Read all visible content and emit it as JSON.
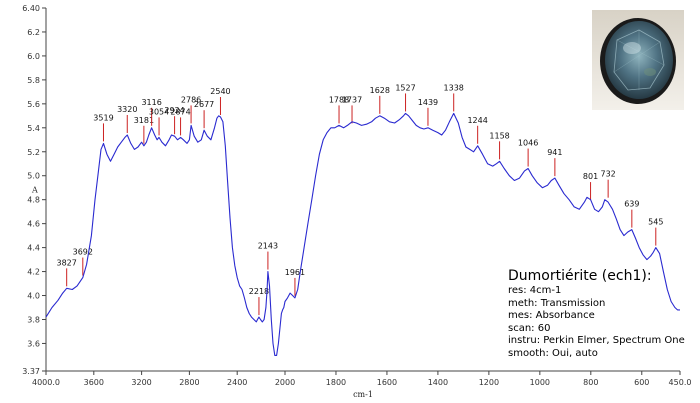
{
  "chart_data": {
    "type": "line",
    "xlabel": "cm-1",
    "ylabel": "A",
    "xlim": [
      4000,
      450
    ],
    "ylim": [
      3.37,
      6.4
    ],
    "x_ticks": [
      4000,
      3600,
      3200,
      2800,
      2400,
      2000,
      1800,
      1600,
      1400,
      1200,
      1000,
      800,
      600,
      450
    ],
    "x_tick_labels": [
      "4000.0",
      "3600",
      "3200",
      "2800",
      "2400",
      "2000",
      "1800",
      "1600",
      "1400",
      "1200",
      "1000",
      "800",
      "600",
      "450.0"
    ],
    "y_ticks": [
      3.37,
      3.6,
      3.8,
      4.0,
      4.2,
      4.4,
      4.6,
      4.8,
      5.0,
      5.2,
      5.4,
      5.6,
      5.8,
      6.0,
      6.2,
      6.4
    ],
    "y_tick_labels": [
      "3.37",
      "3.6",
      "3.8",
      "4.0",
      "4.2",
      "4.4",
      "4.6",
      "4.8",
      "5.0",
      "5.2",
      "5.4",
      "5.6",
      "5.8",
      "6.0",
      "6.2",
      "6.40"
    ],
    "line_color": "#2a2ad0",
    "peak_marker_color": "#cc2222",
    "series": [
      {
        "x": [
          4000,
          3950,
          3900,
          3860,
          3827,
          3780,
          3740,
          3692,
          3660,
          3620,
          3590,
          3560,
          3540,
          3519,
          3490,
          3460,
          3430,
          3400,
          3370,
          3340,
          3320,
          3290,
          3260,
          3230,
          3200,
          3181,
          3160,
          3140,
          3116,
          3090,
          3070,
          3054,
          3030,
          3000,
          2970,
          2950,
          2924,
          2900,
          2874,
          2850,
          2820,
          2800,
          2786,
          2760,
          2730,
          2700,
          2677,
          2650,
          2620,
          2590,
          2570,
          2555,
          2540,
          2520,
          2500,
          2480,
          2460,
          2440,
          2420,
          2400,
          2380,
          2360,
          2340,
          2320,
          2300,
          2280,
          2260,
          2240,
          2230,
          2218,
          2205,
          2190,
          2175,
          2160,
          2150,
          2143,
          2130,
          2115,
          2100,
          2085,
          2070,
          2055,
          2040,
          2030,
          2020,
          2010,
          2000,
          1990,
          1980,
          1970,
          1961,
          1950,
          1940,
          1925,
          1910,
          1895,
          1880,
          1865,
          1850,
          1835,
          1820,
          1805,
          1788,
          1770,
          1755,
          1737,
          1720,
          1700,
          1680,
          1660,
          1645,
          1628,
          1610,
          1590,
          1570,
          1550,
          1535,
          1527,
          1515,
          1500,
          1485,
          1470,
          1455,
          1439,
          1420,
          1400,
          1385,
          1370,
          1355,
          1338,
          1320,
          1305,
          1290,
          1275,
          1260,
          1244,
          1225,
          1205,
          1185,
          1170,
          1158,
          1140,
          1120,
          1100,
          1080,
          1060,
          1046,
          1030,
          1010,
          990,
          970,
          955,
          941,
          925,
          905,
          885,
          865,
          845,
          825,
          815,
          801,
          785,
          770,
          755,
          745,
          732,
          715,
          700,
          685,
          670,
          655,
          639,
          625,
          610,
          595,
          580,
          565,
          555,
          545,
          530,
          515,
          500,
          485,
          470,
          460,
          450
        ],
        "y": [
          3.82,
          3.9,
          3.96,
          4.02,
          4.06,
          4.05,
          4.08,
          4.15,
          4.26,
          4.5,
          4.8,
          5.05,
          5.22,
          5.27,
          5.18,
          5.12,
          5.18,
          5.24,
          5.28,
          5.32,
          5.34,
          5.27,
          5.22,
          5.24,
          5.28,
          5.25,
          5.28,
          5.34,
          5.4,
          5.34,
          5.3,
          5.32,
          5.28,
          5.25,
          5.3,
          5.34,
          5.33,
          5.3,
          5.32,
          5.3,
          5.27,
          5.3,
          5.42,
          5.33,
          5.28,
          5.3,
          5.38,
          5.33,
          5.3,
          5.4,
          5.48,
          5.5,
          5.49,
          5.45,
          5.25,
          4.95,
          4.65,
          4.4,
          4.25,
          4.15,
          4.08,
          4.05,
          3.98,
          3.9,
          3.85,
          3.82,
          3.8,
          3.78,
          3.8,
          3.82,
          3.8,
          3.78,
          3.8,
          3.9,
          4.05,
          4.2,
          4.08,
          3.8,
          3.6,
          3.5,
          3.5,
          3.6,
          3.75,
          3.85,
          3.88,
          3.9,
          3.95,
          3.98,
          4.02,
          4.0,
          3.98,
          4.05,
          4.2,
          4.4,
          4.6,
          4.8,
          5.0,
          5.18,
          5.3,
          5.36,
          5.4,
          5.4,
          5.42,
          5.4,
          5.42,
          5.45,
          5.44,
          5.42,
          5.43,
          5.45,
          5.48,
          5.5,
          5.48,
          5.45,
          5.44,
          5.47,
          5.5,
          5.52,
          5.5,
          5.46,
          5.42,
          5.4,
          5.39,
          5.4,
          5.38,
          5.36,
          5.34,
          5.38,
          5.45,
          5.52,
          5.44,
          5.32,
          5.24,
          5.22,
          5.2,
          5.25,
          5.18,
          5.1,
          5.08,
          5.1,
          5.12,
          5.06,
          5.0,
          4.96,
          4.98,
          5.04,
          5.06,
          5.0,
          4.94,
          4.9,
          4.92,
          4.96,
          4.98,
          4.92,
          4.85,
          4.8,
          4.74,
          4.72,
          4.78,
          4.82,
          4.8,
          4.72,
          4.7,
          4.74,
          4.8,
          4.78,
          4.72,
          4.64,
          4.55,
          4.5,
          4.53,
          4.55,
          4.48,
          4.4,
          4.34,
          4.3,
          4.33,
          4.36,
          4.4,
          4.35,
          4.2,
          4.05,
          3.95,
          3.9,
          3.88,
          3.88
        ]
      }
    ],
    "peaks": [
      {
        "label": "3827",
        "x": 3827,
        "y": 4.06
      },
      {
        "label": "3692",
        "x": 3692,
        "y": 4.15
      },
      {
        "label": "3519",
        "x": 3519,
        "y": 5.27
      },
      {
        "label": "3320",
        "x": 3320,
        "y": 5.34
      },
      {
        "label": "3181",
        "x": 3181,
        "y": 5.25
      },
      {
        "label": "3116",
        "x": 3116,
        "y": 5.4
      },
      {
        "label": "3054",
        "x": 3054,
        "y": 5.32
      },
      {
        "label": "2924",
        "x": 2924,
        "y": 5.33
      },
      {
        "label": "2874",
        "x": 2874,
        "y": 5.32
      },
      {
        "label": "2786",
        "x": 2786,
        "y": 5.42
      },
      {
        "label": "2677",
        "x": 2677,
        "y": 5.38
      },
      {
        "label": "2540",
        "x": 2540,
        "y": 5.49
      },
      {
        "label": "2218",
        "x": 2218,
        "y": 3.82
      },
      {
        "label": "2143",
        "x": 2143,
        "y": 4.2
      },
      {
        "label": "1961",
        "x": 1961,
        "y": 3.98
      },
      {
        "label": "1788",
        "x": 1788,
        "y": 5.42
      },
      {
        "label": "1737",
        "x": 1737,
        "y": 5.42
      },
      {
        "label": "1628",
        "x": 1628,
        "y": 5.5
      },
      {
        "label": "1527",
        "x": 1527,
        "y": 5.52
      },
      {
        "label": "1439",
        "x": 1439,
        "y": 5.4
      },
      {
        "label": "1338",
        "x": 1338,
        "y": 5.52
      },
      {
        "label": "1244",
        "x": 1244,
        "y": 5.25
      },
      {
        "label": "1158",
        "x": 1158,
        "y": 5.12
      },
      {
        "label": "1046",
        "x": 1046,
        "y": 5.06
      },
      {
        "label": "941",
        "x": 941,
        "y": 4.98
      },
      {
        "label": "801",
        "x": 801,
        "y": 4.78
      },
      {
        "label": "732",
        "x": 732,
        "y": 4.8
      },
      {
        "label": "639",
        "x": 639,
        "y": 4.55
      },
      {
        "label": "545",
        "x": 545,
        "y": 4.4
      }
    ]
  },
  "info": {
    "title": "Dumortiérite (ech1):",
    "lines": [
      "res: 4cm-1",
      "meth: Transmission",
      "mes: Absorbance",
      "scan: 60",
      "instru: Perkin Elmer, Spectrum One",
      "smooth: Oui, auto"
    ]
  },
  "photo": {
    "icon": "gemstone-photo-icon",
    "background_color": "#eeeae4",
    "stone_color": "#3b5a6a"
  }
}
